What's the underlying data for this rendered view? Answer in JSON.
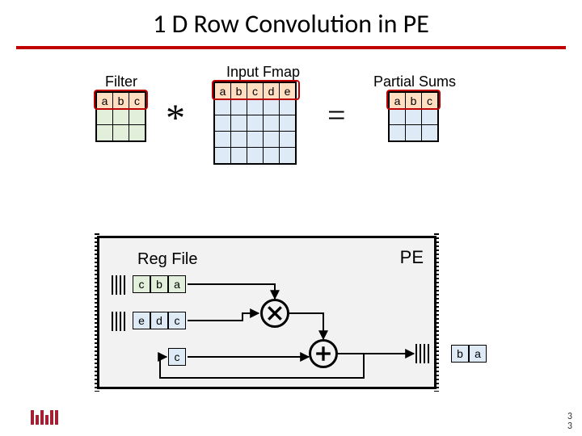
{
  "title": "1 D Row Convolution in PE",
  "labels": {
    "filter": "Filter",
    "fmap": "Input Fmap",
    "psum": "Partial Sums",
    "conv": "*",
    "eq": "=",
    "regfile": "Reg File",
    "pe": "PE"
  },
  "filter": {
    "cols": 3,
    "rows": 3,
    "row0": [
      "a",
      "b",
      "c"
    ],
    "fill": "#e2efda",
    "hl_fill": "rgba(255,160,80,0.35)"
  },
  "fmap": {
    "cols": 5,
    "rows": 5,
    "row0": [
      "a",
      "b",
      "c",
      "d",
      "e"
    ],
    "fill": "#deebf7",
    "hl_fill": "rgba(255,160,80,0.35)"
  },
  "psum": {
    "cols": 3,
    "rows": 3,
    "row0": [
      "a",
      "b",
      "c"
    ],
    "fill": "#deebf7",
    "hl_fill": "rgba(255,160,80,0.35)"
  },
  "pe": {
    "bg": "#f2f2f2",
    "weights": [
      "c",
      "b",
      "a"
    ],
    "weight_fill": "#e2efda",
    "inputs": [
      "e",
      "d",
      "c"
    ],
    "input_fill": "#deebf7",
    "psum_reg": [
      "c"
    ],
    "psum_fill": "#deebf7",
    "out": [
      "b",
      "a"
    ],
    "out_fill": "#deebf7"
  },
  "page": {
    "n1": "3",
    "n2": "3"
  },
  "colors": {
    "accent": "#c00000"
  }
}
